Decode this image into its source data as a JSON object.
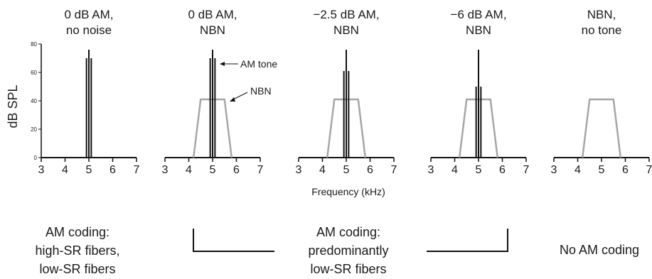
{
  "chart_data": {
    "type": "line",
    "ylabel": "dB SPL",
    "xlabel": "Frequency (kHz)",
    "ylim": [
      0,
      80
    ],
    "xlim": [
      3,
      7
    ],
    "y_ticks": [
      "0",
      "20",
      "40",
      "60",
      "80"
    ],
    "x_ticks": [
      "3",
      "4",
      "5",
      "6",
      "7"
    ],
    "panels": [
      {
        "title": [
          "0 dB AM,",
          "no noise"
        ],
        "tone": {
          "carrier_khz": 5.0,
          "carrier_db": 76,
          "sidebands_khz": [
            4.9,
            5.1
          ],
          "sideband_db": 70
        },
        "noise": null
      },
      {
        "title": [
          "0 dB AM,",
          "NBN"
        ],
        "tone": {
          "carrier_khz": 5.0,
          "carrier_db": 76,
          "sidebands_khz": [
            4.9,
            5.1
          ],
          "sideband_db": 70
        },
        "noise": {
          "level_db": 41,
          "bottom_khz": [
            4.2,
            5.8
          ],
          "top_khz": [
            4.5,
            5.5
          ]
        }
      },
      {
        "title": [
          "−2.5 dB AM,",
          "NBN"
        ],
        "tone": {
          "carrier_khz": 5.0,
          "carrier_db": 76,
          "sidebands_khz": [
            4.9,
            5.1
          ],
          "sideband_db": 61
        },
        "noise": {
          "level_db": 41,
          "bottom_khz": [
            4.2,
            5.8
          ],
          "top_khz": [
            4.5,
            5.5
          ]
        }
      },
      {
        "title": [
          "−6 dB AM,",
          "NBN"
        ],
        "tone": {
          "carrier_khz": 5.0,
          "carrier_db": 76,
          "sidebands_khz": [
            4.9,
            5.1
          ],
          "sideband_db": 50
        },
        "noise": {
          "level_db": 41,
          "bottom_khz": [
            4.2,
            5.8
          ],
          "top_khz": [
            4.5,
            5.5
          ]
        }
      },
      {
        "title": [
          "NBN,",
          "no tone"
        ],
        "tone": null,
        "noise": {
          "level_db": 41,
          "bottom_khz": [
            4.2,
            5.8
          ],
          "top_khz": [
            4.5,
            5.5
          ]
        }
      }
    ],
    "annotations": {
      "tone": "AM tone",
      "noise": "NBN"
    },
    "colors": {
      "tone": "#111111",
      "noise": "#a6a6a6",
      "axis": "#111111"
    }
  },
  "coding": {
    "left": [
      "AM coding:",
      "high-SR fibers,",
      "low-SR fibers"
    ],
    "middle": [
      "AM coding:",
      "predominantly",
      "low-SR fibers"
    ],
    "right": [
      "No AM coding"
    ]
  }
}
